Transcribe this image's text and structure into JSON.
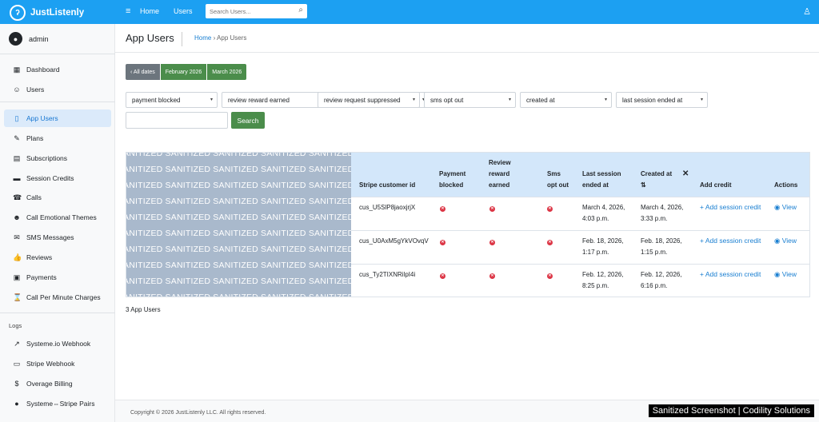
{
  "app": {
    "brand": "JustListenly",
    "logo_glyph": "ʔ",
    "hamburger_glyph": "≡",
    "user_icon_glyph": "♙",
    "search_glyph": "⌕"
  },
  "topnav": {
    "home": "Home",
    "users": "Users",
    "search_placeholder": "Search Users..."
  },
  "sidebar": {
    "user": "admin",
    "avatar_glyph": "●",
    "items": [
      {
        "label": "Dashboard",
        "icon": "▦"
      },
      {
        "label": "Users",
        "icon": "☺"
      },
      {
        "label": "App Users",
        "icon": "▯"
      },
      {
        "label": "Plans",
        "icon": "✎"
      },
      {
        "label": "Subscriptions",
        "icon": "▤"
      },
      {
        "label": "Session Credits",
        "icon": "▬"
      },
      {
        "label": "Calls",
        "icon": "☎"
      },
      {
        "label": "Call Emotional Themes",
        "icon": "☻"
      },
      {
        "label": "SMS Messages",
        "icon": "✉"
      },
      {
        "label": "Reviews",
        "icon": "👍"
      },
      {
        "label": "Payments",
        "icon": "▣"
      },
      {
        "label": "Call Per Minute Charges",
        "icon": "⌛"
      }
    ],
    "logs_label": "Logs",
    "log_items": [
      {
        "label": "Systeme.io Webhook",
        "icon": "↗"
      },
      {
        "label": "Stripe Webhook",
        "icon": "▭"
      },
      {
        "label": "Overage Billing",
        "icon": "$"
      },
      {
        "label": "Systeme⇔Stripe Pairs",
        "icon": "●"
      }
    ]
  },
  "page": {
    "title": "App Users",
    "breadcrumb_home": "Home",
    "breadcrumb_sep": "›",
    "breadcrumb_current": "App Users"
  },
  "date_filters": {
    "all": "‹ All dates",
    "feb": "February 2026",
    "mar": "March 2026"
  },
  "filters": [
    "payment blocked",
    "review reward earned",
    "review request suppressed",
    "sms opt out",
    "created at",
    "last session ended at"
  ],
  "filter_caret": "▾",
  "search": {
    "value": "",
    "button": "Search"
  },
  "sanitize_text": "ANITIZED SANITIZED SANITIZED SANITIZED SANITIZED SANITIZED SA",
  "table": {
    "headers": {
      "customer_id": "Stripe customer id",
      "payment_blocked_1": "Payment",
      "payment_blocked_2": "blocked",
      "review_1": "Review",
      "review_2": "reward",
      "review_3": "earned",
      "sms_1": "Sms",
      "sms_2": "opt out",
      "last_1": "Last session",
      "last_2": "ended at",
      "created_1": "Created at",
      "created_sort": "⇅",
      "clear_sort": "✕",
      "add_credit": "Add credit",
      "actions": "Actions"
    },
    "x_glyph": "✕",
    "add_label": "+ Add session credit",
    "view_label": "◉ View",
    "rows": [
      {
        "customer_id": "cus_U5SlP8jaoxjrjX",
        "last_1": "March 4, 2026,",
        "last_2": "4:03 p.m.",
        "created_1": "March 4, 2026,",
        "created_2": "3:33 p.m."
      },
      {
        "customer_id": "cus_U0AxM5gYkVOvqV",
        "last_1": "Feb. 18, 2026,",
        "last_2": "1:17 p.m.",
        "created_1": "Feb. 18, 2026,",
        "created_2": "1:15 p.m."
      },
      {
        "customer_id": "cus_Ty2TIXNRilpI4i",
        "last_1": "Feb. 12, 2026,",
        "last_2": "8:25 p.m.",
        "created_1": "Feb. 12, 2026,",
        "created_2": "6:16 p.m."
      }
    ]
  },
  "count_text": "3 App Users",
  "footer": {
    "copyright": "Copyright © 2026 JustListenly LLC. All rights reserved."
  },
  "watermark": "Sanitized Screenshot | Codility Solutions"
}
